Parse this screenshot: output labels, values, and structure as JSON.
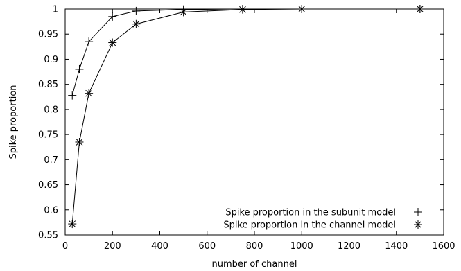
{
  "chart_data": {
    "type": "line",
    "title": "",
    "xlabel": "number of channel",
    "ylabel": "Spike proportion",
    "xlim": [
      0,
      1600
    ],
    "ylim": [
      0.55,
      1.0
    ],
    "x_ticks": [
      0,
      200,
      400,
      600,
      800,
      1000,
      1200,
      1400,
      1600
    ],
    "y_ticks": [
      0.55,
      0.6,
      0.65,
      0.7,
      0.75,
      0.8,
      0.85,
      0.9,
      0.95,
      1.0
    ],
    "x_tick_labels": [
      "0",
      "200",
      "400",
      "600",
      "800",
      "1000",
      "1200",
      "1400",
      "1600"
    ],
    "y_tick_labels": [
      "0.55",
      "0.6",
      "0.65",
      "0.7",
      "0.75",
      "0.8",
      "0.85",
      "0.9",
      "0.95",
      "1"
    ],
    "grid": false,
    "legend_position": "bottom-right",
    "series": [
      {
        "name": "Spike proportion in the subunit model",
        "marker": "plus",
        "color": "#000000",
        "x": [
          30,
          60,
          100,
          200,
          300,
          500,
          750,
          1000,
          1500
        ],
        "y": [
          0.828,
          0.88,
          0.935,
          0.985,
          0.996,
          0.999,
          1.0,
          1.0,
          1.0
        ]
      },
      {
        "name": "Spike proportion in the channel model",
        "marker": "star",
        "color": "#000000",
        "x": [
          30,
          60,
          100,
          200,
          300,
          500,
          750,
          1000,
          1500
        ],
        "y": [
          0.572,
          0.735,
          0.832,
          0.933,
          0.97,
          0.994,
          0.999,
          1.0,
          1.0
        ]
      }
    ]
  }
}
